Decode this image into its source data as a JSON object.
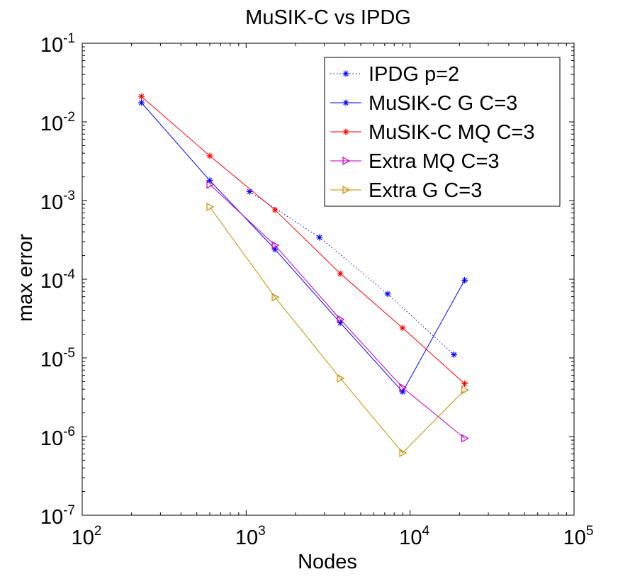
{
  "chart_data": {
    "type": "line",
    "title": "MuSIK-C vs IPDG",
    "xlabel": "Nodes",
    "ylabel": "max error",
    "xscale": "log",
    "yscale": "log",
    "xlim": [
      100,
      100000
    ],
    "ylim": [
      1e-07,
      0.1
    ],
    "grid": false,
    "legend_position": "top-right",
    "x_ticks": [
      {
        "value": 100,
        "base": "10",
        "exp": "2"
      },
      {
        "value": 1000,
        "base": "10",
        "exp": "3"
      },
      {
        "value": 10000,
        "base": "10",
        "exp": "4"
      },
      {
        "value": 100000,
        "base": "10",
        "exp": "5"
      }
    ],
    "y_ticks": [
      {
        "value": 1e-07,
        "base": "10",
        "exp": "-7"
      },
      {
        "value": 1e-06,
        "base": "10",
        "exp": "-6"
      },
      {
        "value": 1e-05,
        "base": "10",
        "exp": "-5"
      },
      {
        "value": 0.0001,
        "base": "10",
        "exp": "-4"
      },
      {
        "value": 0.001,
        "base": "10",
        "exp": "-3"
      },
      {
        "value": 0.01,
        "base": "10",
        "exp": "-2"
      },
      {
        "value": 0.1,
        "base": "10",
        "exp": "-1"
      }
    ],
    "series": [
      {
        "name": "IPDG p=2",
        "color": "#0000ff",
        "line_style": "dotted",
        "marker": "asterisk",
        "x": [
          1050,
          2800,
          7300,
          18500
        ],
        "y": [
          0.0013,
          0.00034,
          6.5e-05,
          1.1e-05
        ]
      },
      {
        "name": "MuSIK-C G C=3",
        "color": "#0000ff",
        "line_style": "solid",
        "marker": "asterisk",
        "x": [
          230,
          600,
          1500,
          3750,
          9000,
          21500
        ],
        "y": [
          0.0175,
          0.0018,
          0.00024,
          2.8e-05,
          3.7e-06,
          9.7e-05
        ]
      },
      {
        "name": "MuSIK-C MQ C=3",
        "color": "#ff0000",
        "line_style": "solid",
        "marker": "asterisk",
        "x": [
          230,
          600,
          1500,
          3750,
          9000,
          21500
        ],
        "y": [
          0.021,
          0.0037,
          0.00076,
          0.000118,
          2.4e-05,
          4.7e-06
        ]
      },
      {
        "name": "Extra MQ C=3",
        "color": "#bf00bf",
        "line_style": "solid",
        "marker": "triangle-right",
        "x": [
          600,
          1500,
          3750,
          9000,
          21500
        ],
        "y": [
          0.0016,
          0.00027,
          3.1e-05,
          4.2e-06,
          9.5e-07
        ]
      },
      {
        "name": "Extra G C=3",
        "color": "#bf9000",
        "line_style": "solid",
        "marker": "triangle-right",
        "x": [
          600,
          1500,
          3750,
          9000,
          21500
        ],
        "y": [
          0.00083,
          5.9e-05,
          5.5e-06,
          6.2e-07,
          3.9e-06
        ]
      }
    ]
  }
}
